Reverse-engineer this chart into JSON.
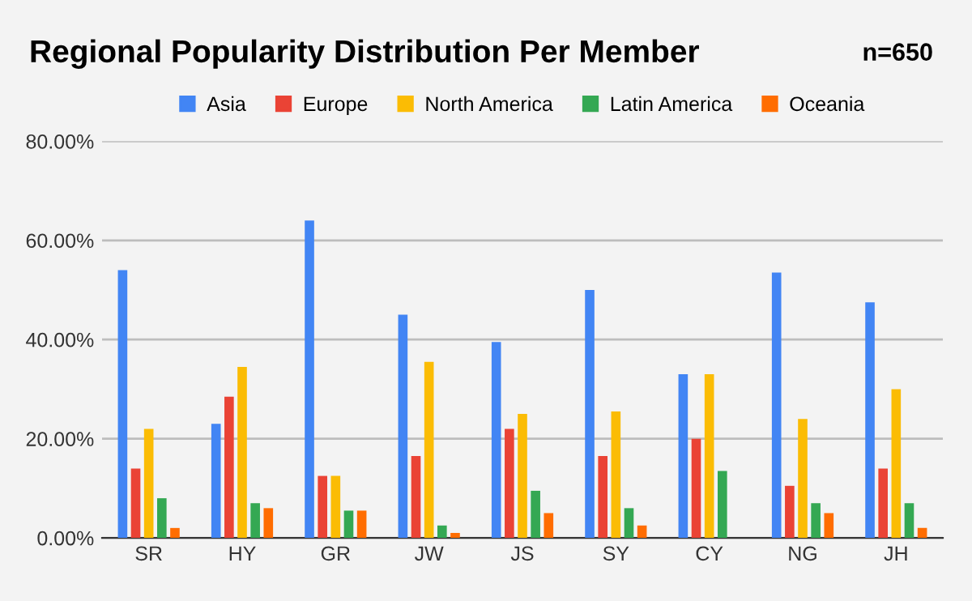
{
  "chart_data": {
    "type": "bar",
    "title": "Regional Popularity Distribution Per Member",
    "annotations": [
      "n=650"
    ],
    "categories": [
      "SR",
      "HY",
      "GR",
      "JW",
      "JS",
      "SY",
      "CY",
      "NG",
      "JH"
    ],
    "series": [
      {
        "name": "Asia",
        "color": "#4285f4",
        "values": [
          54,
          23,
          64,
          45,
          39.5,
          50,
          33,
          53.5,
          47.5
        ]
      },
      {
        "name": "Europe",
        "color": "#ea4335",
        "values": [
          14,
          28.5,
          12.5,
          16.5,
          22,
          16.5,
          20,
          10.5,
          14
        ]
      },
      {
        "name": "North America",
        "color": "#fbbc04",
        "values": [
          22,
          34.5,
          12.5,
          35.5,
          25,
          25.5,
          33,
          24,
          30
        ]
      },
      {
        "name": "Latin America",
        "color": "#34a853",
        "values": [
          8,
          7,
          5.5,
          2.5,
          9.5,
          6,
          13.5,
          7,
          7
        ]
      },
      {
        "name": "Oceania",
        "color": "#ff6d01",
        "values": [
          2,
          6,
          5.5,
          1,
          5,
          2.5,
          0,
          5,
          2
        ]
      }
    ],
    "ylim": [
      0,
      80
    ],
    "yticks": [
      {
        "value": 0,
        "label": "0.00%"
      },
      {
        "value": 20,
        "label": "20.00%"
      },
      {
        "value": 40,
        "label": "40.00%"
      },
      {
        "value": 60,
        "label": "60.00%"
      },
      {
        "value": 80,
        "label": "80.00%"
      }
    ],
    "grid": "y",
    "legend": "top"
  }
}
